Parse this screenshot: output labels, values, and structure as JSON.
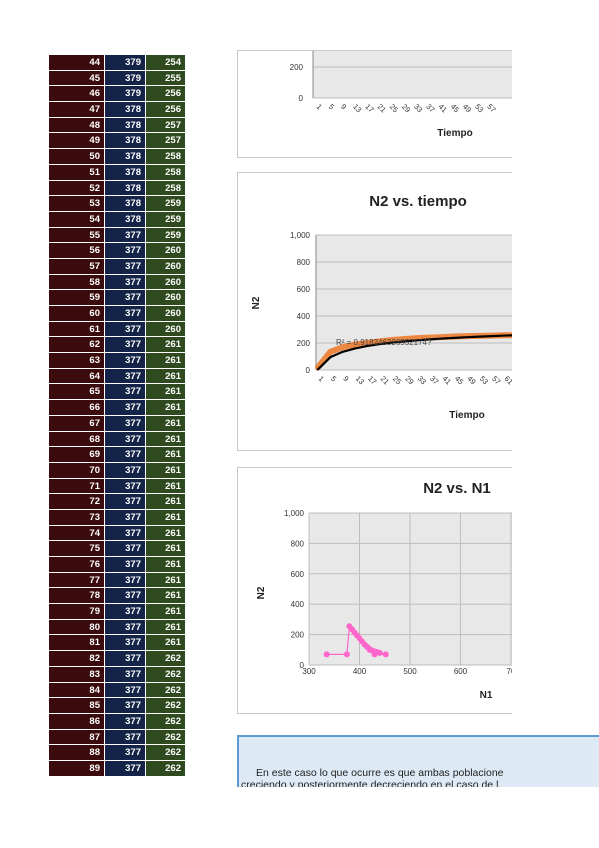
{
  "table": {
    "rows": [
      [
        "44",
        "379",
        "254"
      ],
      [
        "45",
        "379",
        "255"
      ],
      [
        "46",
        "379",
        "256"
      ],
      [
        "47",
        "378",
        "256"
      ],
      [
        "48",
        "378",
        "257"
      ],
      [
        "49",
        "378",
        "257"
      ],
      [
        "50",
        "378",
        "258"
      ],
      [
        "51",
        "378",
        "258"
      ],
      [
        "52",
        "378",
        "258"
      ],
      [
        "53",
        "378",
        "259"
      ],
      [
        "54",
        "378",
        "259"
      ],
      [
        "55",
        "377",
        "259"
      ],
      [
        "56",
        "377",
        "260"
      ],
      [
        "57",
        "377",
        "260"
      ],
      [
        "58",
        "377",
        "260"
      ],
      [
        "59",
        "377",
        "260"
      ],
      [
        "60",
        "377",
        "260"
      ],
      [
        "61",
        "377",
        "260"
      ],
      [
        "62",
        "377",
        "261"
      ],
      [
        "63",
        "377",
        "261"
      ],
      [
        "64",
        "377",
        "261"
      ],
      [
        "65",
        "377",
        "261"
      ],
      [
        "66",
        "377",
        "261"
      ],
      [
        "67",
        "377",
        "261"
      ],
      [
        "68",
        "377",
        "261"
      ],
      [
        "69",
        "377",
        "261"
      ],
      [
        "70",
        "377",
        "261"
      ],
      [
        "71",
        "377",
        "261"
      ],
      [
        "72",
        "377",
        "261"
      ],
      [
        "73",
        "377",
        "261"
      ],
      [
        "74",
        "377",
        "261"
      ],
      [
        "75",
        "377",
        "261"
      ],
      [
        "76",
        "377",
        "261"
      ],
      [
        "77",
        "377",
        "261"
      ],
      [
        "78",
        "377",
        "261"
      ],
      [
        "79",
        "377",
        "261"
      ],
      [
        "80",
        "377",
        "261"
      ],
      [
        "81",
        "377",
        "261"
      ],
      [
        "82",
        "377",
        "262"
      ],
      [
        "83",
        "377",
        "262"
      ],
      [
        "84",
        "377",
        "262"
      ],
      [
        "85",
        "377",
        "262"
      ],
      [
        "86",
        "377",
        "262"
      ],
      [
        "87",
        "377",
        "262"
      ],
      [
        "88",
        "377",
        "262"
      ],
      [
        "89",
        "377",
        "262"
      ]
    ],
    "colors": [
      "#3a0a0c",
      "#142448",
      "#2f4a1e"
    ]
  },
  "chart_data": [
    {
      "type": "line",
      "title": "",
      "xlabel": "Tiempo",
      "ylabel": "",
      "visible_yticks": [
        "200",
        "0"
      ],
      "xticks": [
        "1",
        "5",
        "9",
        "13",
        "17",
        "21",
        "25",
        "29",
        "33",
        "37",
        "41",
        "45",
        "49",
        "53",
        "57"
      ],
      "grid": true
    },
    {
      "type": "line",
      "title": "N2 vs. tiempo",
      "xlabel": "Tiempo",
      "ylabel": "N2",
      "ylim": [
        0,
        1000
      ],
      "yticks": [
        "1,000",
        "800",
        "600",
        "400",
        "200",
        "0"
      ],
      "xticks": [
        "1",
        "5",
        "9",
        "13",
        "17",
        "21",
        "25",
        "29",
        "33",
        "37",
        "41",
        "45",
        "49",
        "53",
        "57",
        "61"
      ],
      "trendline_label": "R² = 0.918246326552174?",
      "series": [
        {
          "color": "#ed7d31",
          "x": [
            1,
            5,
            9,
            13,
            17,
            21,
            25,
            29,
            33,
            37,
            41,
            45,
            49,
            53,
            57,
            61,
            64
          ],
          "values": [
            20,
            135,
            170,
            188,
            200,
            212,
            222,
            230,
            236,
            240,
            244,
            248,
            251,
            253,
            255,
            257,
            258
          ]
        },
        {
          "color": "#000000",
          "trend": "logarithmic",
          "x": [
            1,
            5,
            9,
            13,
            17,
            21,
            25,
            29,
            33,
            37,
            41,
            45,
            49,
            53,
            57,
            61,
            64
          ],
          "values": [
            5,
            95,
            135,
            160,
            178,
            192,
            203,
            212,
            220,
            227,
            233,
            238,
            243,
            247,
            251,
            255,
            257
          ]
        }
      ],
      "grid": true
    },
    {
      "type": "scatter",
      "title": "N2 vs. N1",
      "xlabel": "N1",
      "ylabel": "N2",
      "xlim": [
        300,
        700
      ],
      "ylim": [
        0,
        1000
      ],
      "xticks": [
        "300",
        "400",
        "500",
        "600",
        "70"
      ],
      "yticks": [
        "1,000",
        "800",
        "600",
        "400",
        "200",
        "0"
      ],
      "series": [
        {
          "color": "#ff66cc",
          "x": [
            335,
            375,
            380,
            385,
            390,
            395,
            400,
            405,
            410,
            415,
            420,
            425,
            430,
            435,
            440,
            452,
            430,
            420
          ],
          "values": [
            70,
            70,
            255,
            235,
            215,
            195,
            175,
            155,
            135,
            120,
            105,
            95,
            90,
            85,
            80,
            70,
            70,
            100
          ]
        }
      ],
      "grid": true
    }
  ],
  "textbox": {
    "line1": "En este caso lo que ocurre es que ambas poblacione",
    "line2": "creciendo y posteriormente decreciendo en el caso de l"
  }
}
